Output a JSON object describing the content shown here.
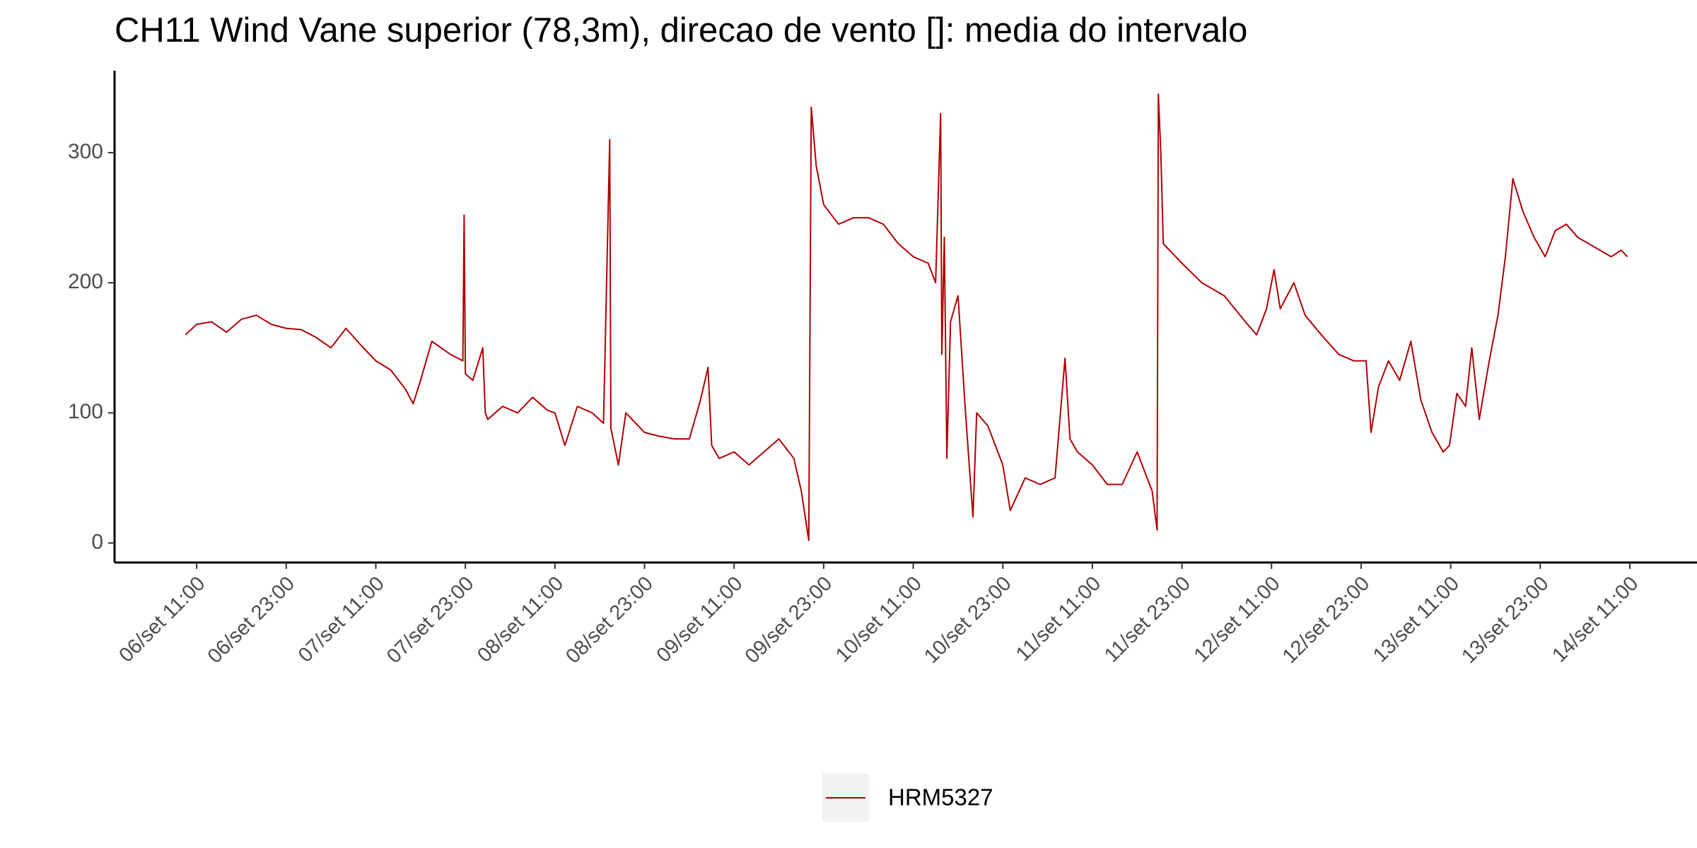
{
  "chart_data": {
    "type": "line",
    "title": "CH11 Wind Vane superior (78,3m), direcao de vento []: media do intervalo",
    "x": [
      "06/set 09:30",
      "06/set 11:00",
      "06/set 13:00",
      "06/set 15:00",
      "06/set 17:00",
      "06/set 19:00",
      "06/set 21:00",
      "06/set 23:00",
      "07/set 01:00",
      "07/set 03:00",
      "07/set 05:00",
      "07/set 07:00",
      "07/set 09:00",
      "07/set 11:00",
      "07/set 13:00",
      "07/set 15:00",
      "07/set 16:00",
      "07/set 17:00",
      "07/set 18:30",
      "07/set 21:00",
      "07/set 22:40",
      "07/set 22:50",
      "07/set 23:00",
      "08/set 00:00",
      "08/set 01:20",
      "08/set 01:40",
      "08/set 02:00",
      "08/set 04:00",
      "08/set 06:00",
      "08/set 08:00",
      "08/set 10:00",
      "08/set 11:00",
      "08/set 12:20",
      "08/set 14:00",
      "08/set 16:00",
      "08/set 17:30",
      "08/set 18:20",
      "08/set 18:30",
      "08/set 19:30",
      "08/set 20:30",
      "08/set 23:00",
      "09/set 01:00",
      "09/set 03:00",
      "09/set 05:00",
      "09/set 06:30",
      "09/set 07:30",
      "09/set 08:00",
      "09/set 09:00",
      "09/set 11:00",
      "09/set 13:00",
      "09/set 15:00",
      "09/set 17:00",
      "09/set 19:00",
      "09/set 20:00",
      "09/set 21:00",
      "09/set 21:20",
      "09/set 22:00",
      "09/set 23:00",
      "10/set 01:00",
      "10/set 03:00",
      "10/set 05:00",
      "10/set 07:00",
      "10/set 09:00",
      "10/set 11:00",
      "10/set 13:00",
      "10/set 14:00",
      "10/set 14:40",
      "10/set 14:50",
      "10/set 15:10",
      "10/set 15:30",
      "10/set 16:00",
      "10/set 17:00",
      "10/set 18:00",
      "10/set 19:00",
      "10/set 19:30",
      "10/set 21:00",
      "10/set 23:00",
      "11/set 00:00",
      "11/set 02:00",
      "11/set 04:00",
      "11/set 06:00",
      "11/set 07:20",
      "11/set 08:00",
      "11/set 09:00",
      "11/set 11:00",
      "11/set 13:00",
      "11/set 15:00",
      "11/set 17:00",
      "11/set 18:00",
      "11/set 19:00",
      "11/set 19:40",
      "11/set 19:50",
      "11/set 20:10",
      "11/set 20:30",
      "11/set 23:00",
      "12/set 01:40",
      "12/set 04:40",
      "12/set 07:30",
      "12/set 09:00",
      "12/set 10:20",
      "12/set 11:20",
      "12/set 12:10",
      "12/set 14:00",
      "12/set 15:30",
      "12/set 17:40",
      "12/set 20:00",
      "12/set 22:00",
      "12/set 23:40",
      "13/set 00:20",
      "13/set 01:20",
      "13/set 02:40",
      "13/set 04:10",
      "13/set 05:40",
      "13/set 07:00",
      "13/set 08:30",
      "13/set 10:00",
      "13/set 10:50",
      "13/set 11:50",
      "13/set 13:00",
      "13/set 13:50",
      "13/set 14:50",
      "13/set 16:10",
      "13/set 17:20",
      "13/set 18:20",
      "13/set 19:20",
      "13/set 20:40",
      "13/set 22:10",
      "13/set 23:40",
      "14/set 01:00",
      "14/set 02:30",
      "14/set 04:00",
      "14/set 05:30",
      "14/set 07:00",
      "14/set 08:30",
      "14/set 09:50",
      "14/set 10:40"
    ],
    "series": [
      {
        "name": "HRM5327",
        "color": "#b00000",
        "values": [
          160,
          168,
          170,
          162,
          172,
          175,
          168,
          165,
          164,
          158,
          150,
          165,
          152,
          140,
          133,
          118,
          107,
          125,
          155,
          145,
          140,
          252,
          130,
          125,
          150,
          100,
          95,
          105,
          100,
          112,
          102,
          100,
          75,
          105,
          100,
          92,
          310,
          88,
          60,
          100,
          85,
          82,
          80,
          80,
          110,
          135,
          75,
          65,
          70,
          60,
          70,
          80,
          65,
          40,
          2,
          335,
          290,
          260,
          245,
          250,
          250,
          245,
          230,
          220,
          215,
          200,
          330,
          145,
          235,
          65,
          170,
          190,
          100,
          20,
          100,
          90,
          60,
          25,
          50,
          45,
          50,
          142,
          80,
          70,
          60,
          45,
          45,
          70,
          55,
          40,
          10,
          345,
          300,
          230,
          215,
          200,
          190,
          170,
          160,
          180,
          210,
          180,
          200,
          175,
          160,
          145,
          140,
          140,
          85,
          120,
          140,
          125,
          155,
          110,
          85,
          70,
          75,
          115,
          105,
          150,
          95,
          140,
          175,
          220,
          280,
          255,
          235,
          220,
          240,
          245,
          235,
          230,
          225,
          220,
          225,
          220
        ]
      }
    ],
    "xlim": [
      "06/set 00:00",
      "14/set 20:00"
    ],
    "xticks": [
      "06/set 11:00",
      "06/set 23:00",
      "07/set 11:00",
      "07/set 23:00",
      "08/set 11:00",
      "08/set 23:00",
      "09/set 11:00",
      "09/set 23:00",
      "10/set 11:00",
      "10/set 23:00",
      "11/set 11:00",
      "11/set 23:00",
      "12/set 11:00",
      "12/set 23:00",
      "13/set 11:00",
      "13/set 23:00",
      "14/set 11:00"
    ],
    "ylim": [
      -15,
      363
    ],
    "yticks": [
      0,
      100,
      200,
      300
    ],
    "grid": false,
    "legend": "bottom"
  }
}
